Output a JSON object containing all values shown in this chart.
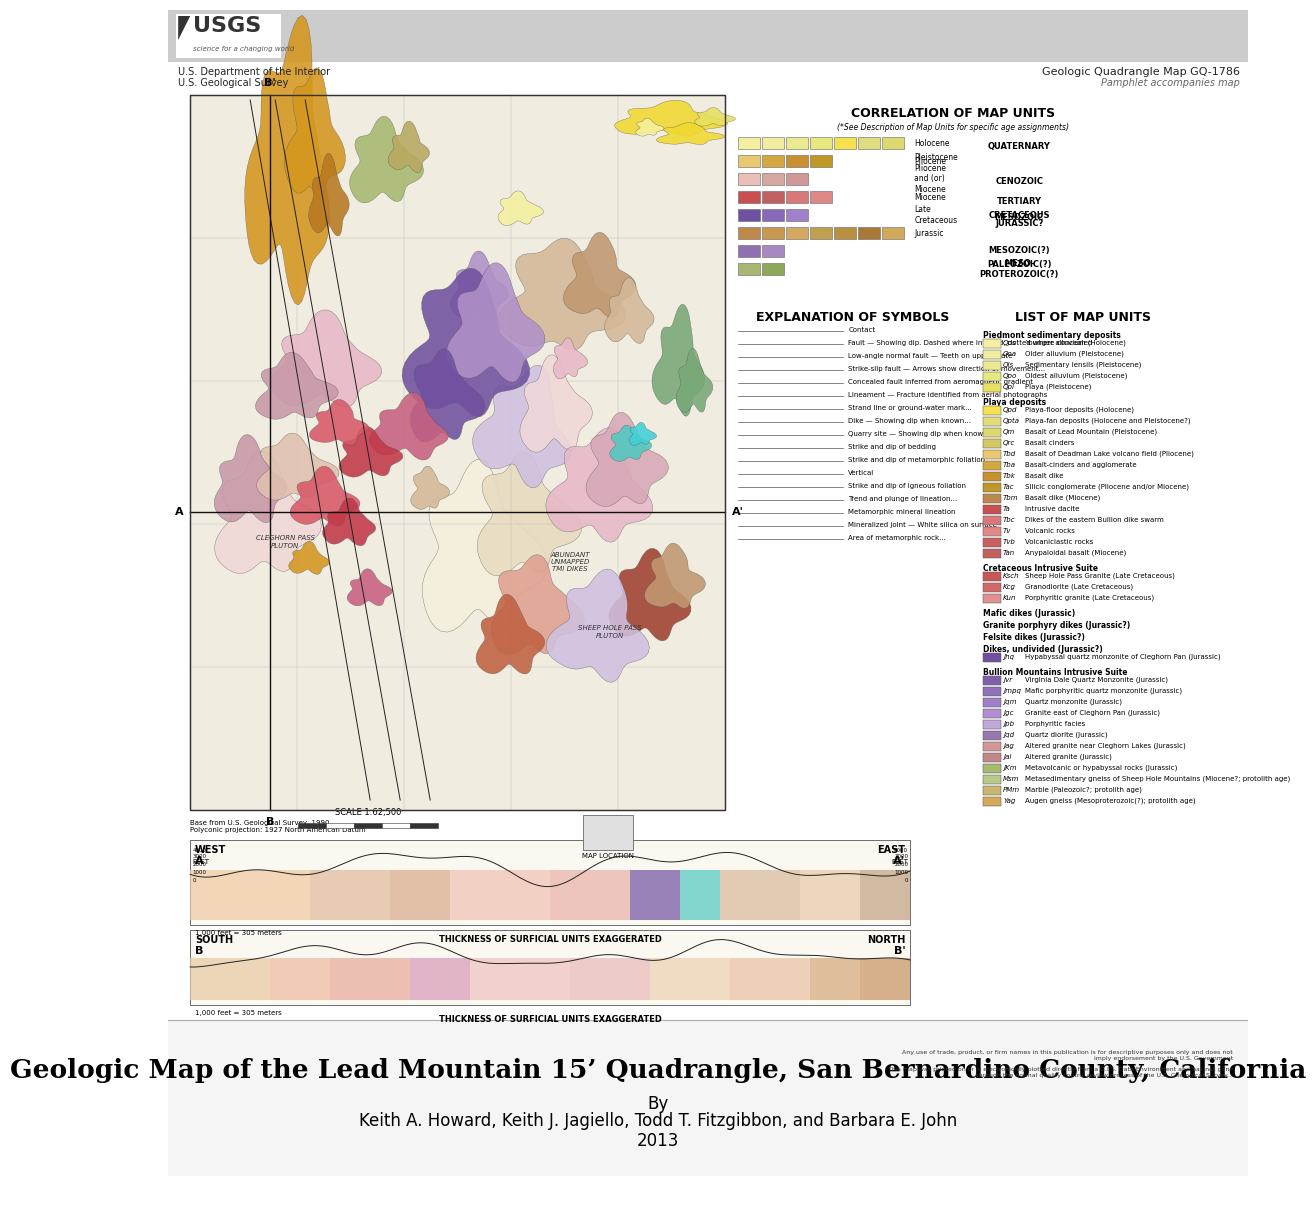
{
  "title": "Geologic Map of the Lead Mountain 15’ Quadrangle, San Bernardino County, California",
  "subtitle": "By",
  "authors": "Keith A. Howard, Keith J. Jagiello, Todd T. Fitzgibbon, and Barbara E. John",
  "year": "2013",
  "page_bg": "#ffffff",
  "header_bg": "#cccccc",
  "dept_line1": "U.S. Department of the Interior",
  "dept_line2": "U.S. Geological Survey",
  "map_title_right": "Geologic Quadrangle Map GQ-1786",
  "map_subtitle_right": "Pamphlet accompanies map",
  "map_bg": "#f0ece0",
  "map_border_color": "#444444",
  "legend_section_title": "CORRELATION OF MAP UNITS",
  "symbols_section_title": "EXPLANATION OF SYMBOLS",
  "list_section_title": "LIST OF MAP UNITS",
  "title_fontsize": 19,
  "author_fontsize": 12,
  "geo_colors": {
    "yellow_bright": "#f0d830",
    "yellow_pale": "#f5f0a0",
    "yellow_medium": "#e8e060",
    "orange_gold": "#d4961e",
    "orange_dark": "#b87820",
    "pink_light": "#f0d8d8",
    "pink_medium": "#e8b8c8",
    "pink_dark": "#d890a8",
    "purple_medium": "#b090c8",
    "purple_dark": "#7050a0",
    "red_dark": "#c03848",
    "red_medium": "#d85868",
    "brown_light": "#d4b898",
    "brown_medium": "#c09870",
    "brown_dark": "#a87848",
    "green_olive": "#a8b870",
    "green_medium": "#78a878",
    "teal": "#50c8c0",
    "blue_medium": "#4890c0",
    "cream": "#f5f0dc",
    "tan_light": "#e8dcc0",
    "lavender": "#d0c0e0",
    "mauve": "#c898a8",
    "salmon": "#e0a090",
    "rust": "#c06040",
    "pink_deep": "#c86080",
    "brown_red": "#a04030"
  },
  "corr_rows": [
    {
      "colors": [
        "#f5f0a0",
        "#f0eda0",
        "#ecea90",
        "#e8e880",
        "#f5e050",
        "#e0dc80",
        "#ddd870"
      ],
      "label": "Holocene / Pleistocene"
    },
    {
      "colors": [
        "#e8c870",
        "#d4a840",
        "#c89030",
        "#c09828"
      ],
      "label": "Pliocene"
    },
    {
      "colors": [
        "#e8c0b8",
        "#d4a8a0",
        "#d09898"
      ],
      "label": "Pliocene/Miocene"
    },
    {
      "colors": [
        "#c85050",
        "#c06060",
        "#d87878",
        "#e08888"
      ],
      "label": "Miocene"
    },
    {
      "colors": [
        "#7050a0",
        "#8868b8",
        "#a080c8"
      ],
      "label": "Late Cretaceous"
    },
    {
      "colors": [
        "#c08848",
        "#c89850",
        "#d4a860",
        "#c0a050",
        "#b89040",
        "#a87838",
        "#d0aa58"
      ],
      "label": "Jurassic"
    },
    {
      "colors": [
        "#9070b0",
        "#a888c0"
      ],
      "label": "Mesozoic?"
    },
    {
      "colors": [
        "#a8b870",
        "#8ca858"
      ],
      "label": "Paleozoic?/Proterozoic?"
    }
  ]
}
